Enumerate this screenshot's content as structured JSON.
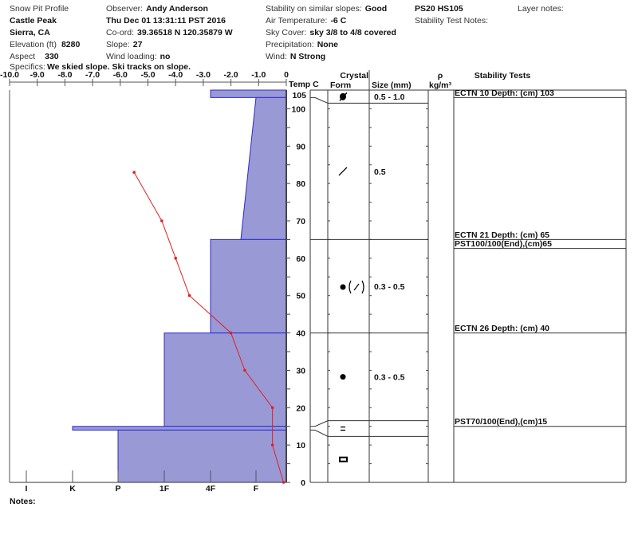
{
  "header": {
    "title": "Snow Pit Profile",
    "location": "Castle Peak",
    "region": "Sierra, CA",
    "elevation_label": "Elevation (ft)",
    "elevation": "8280",
    "aspect_label": "Aspect",
    "aspect": "330",
    "specifics_label": "Specifics:",
    "specifics": "We skied slope. Ski tracks on slope.",
    "observer_label": "Observer:",
    "observer": "Andy Anderson",
    "datetime": "Thu Dec 01 13:31:11 PST 2016",
    "coord_label": "Co-ord:",
    "coord": "39.36518 N 120.35879 W",
    "slope_label": "Slope:",
    "slope": "27",
    "wind_loading_label": "Wind loading:",
    "wind_loading": "no",
    "stability_label": "Stability on similar slopes:",
    "stability": "Good",
    "air_temp_label": "Air Temperature:",
    "air_temp": "-6 C",
    "sky_label": "Sky Cover:",
    "sky": "sky 3/8 to 4/8 covered",
    "precip_label": "Precipitation:",
    "precip": "None",
    "wind_label": "Wind:",
    "wind": "N Strong",
    "ps_hs": "PS20 HS105",
    "stability_test_notes_label": "Stability Test Notes:",
    "layer_notes_label": "Layer notes:"
  },
  "columns": {
    "temp": "Temp C",
    "crystal": "Crystal",
    "form": "Form",
    "size": "Size (mm)",
    "rho": "ρ",
    "rho_unit": "kg/m³",
    "stability_tests": "Stability Tests"
  },
  "notes_label": "Notes:",
  "colors": {
    "hardness_fill": "#9999d6",
    "hardness_line": "#2a2ad0",
    "temp_line": "#e02020"
  },
  "chart_data": {
    "type": "line",
    "temp_axis": {
      "ticks": [
        "-10.0",
        "-9.0",
        "-8.0",
        "-7.0",
        "-6.0",
        "-5.0",
        "-4.0",
        "-3.0",
        "-2.0",
        "-1.0",
        "0"
      ],
      "range": [
        -10,
        0
      ]
    },
    "height_axis": {
      "ticks": [
        "0",
        "10",
        "20",
        "30",
        "40",
        "50",
        "60",
        "70",
        "80",
        "90",
        "100",
        "105"
      ],
      "range": [
        0,
        105
      ]
    },
    "hardness_axis": {
      "ticks": [
        "I",
        "K",
        "P",
        "1F",
        "4F",
        "F"
      ]
    },
    "temperature_profile": [
      {
        "height": 83,
        "temp": -5.5
      },
      {
        "height": 70,
        "temp": -4.5
      },
      {
        "height": 60,
        "temp": -4.0
      },
      {
        "height": 50,
        "temp": -3.5
      },
      {
        "height": 40,
        "temp": -2.0
      },
      {
        "height": 30,
        "temp": -1.5
      },
      {
        "height": 20,
        "temp": -0.5
      },
      {
        "height": 10,
        "temp": -0.5
      },
      {
        "height": 0,
        "temp": -0.1
      }
    ],
    "hardness_layers": [
      {
        "top": 105,
        "bottom": 103,
        "hardness_top": "4F",
        "hardness_bottom": "4F"
      },
      {
        "top": 103,
        "bottom": 65,
        "hardness_top": "F",
        "hardness_bottom": "F-"
      },
      {
        "top": 65,
        "bottom": 40,
        "hardness_top": "4F",
        "hardness_bottom": "4F"
      },
      {
        "top": 40,
        "bottom": 15,
        "hardness_top": "1F",
        "hardness_bottom": "1F"
      },
      {
        "top": 15,
        "bottom": 14,
        "hardness_top": "K",
        "hardness_bottom": "K"
      },
      {
        "top": 14,
        "bottom": 0,
        "hardness_top": "P",
        "hardness_bottom": "P"
      }
    ]
  },
  "crystal_layers": [
    {
      "top": 105,
      "bottom": 101.5,
      "form": "melt-freeze-icon",
      "size": "0.5 - 1.0"
    },
    {
      "top": 101.5,
      "bottom": 65,
      "form": "slash-icon",
      "size": "0.5"
    },
    {
      "top": 65,
      "bottom": 40,
      "form": "round-with-slash-icon",
      "size": "0.3 - 0.5"
    },
    {
      "top": 40,
      "bottom": 16.5,
      "form": "round-icon",
      "size": "0.3 - 0.5"
    },
    {
      "top": 16.5,
      "bottom": 12.3,
      "form": "equals-icon",
      "size": ""
    },
    {
      "top": 12.3,
      "bottom": 0,
      "form": "box-icon",
      "size": ""
    }
  ],
  "stability_tests": [
    {
      "text": "ECTN 10   Depth: (cm) 103",
      "height": 103
    },
    {
      "text": "ECTN 21   Depth: (cm) 65",
      "height": 65
    },
    {
      "text": "PST100/100(End),(cm)65",
      "height": 62.6
    },
    {
      "text": "ECTN 26   Depth: (cm) 40",
      "height": 40
    },
    {
      "text": "PST70/100(End),(cm)15",
      "height": 15
    }
  ]
}
